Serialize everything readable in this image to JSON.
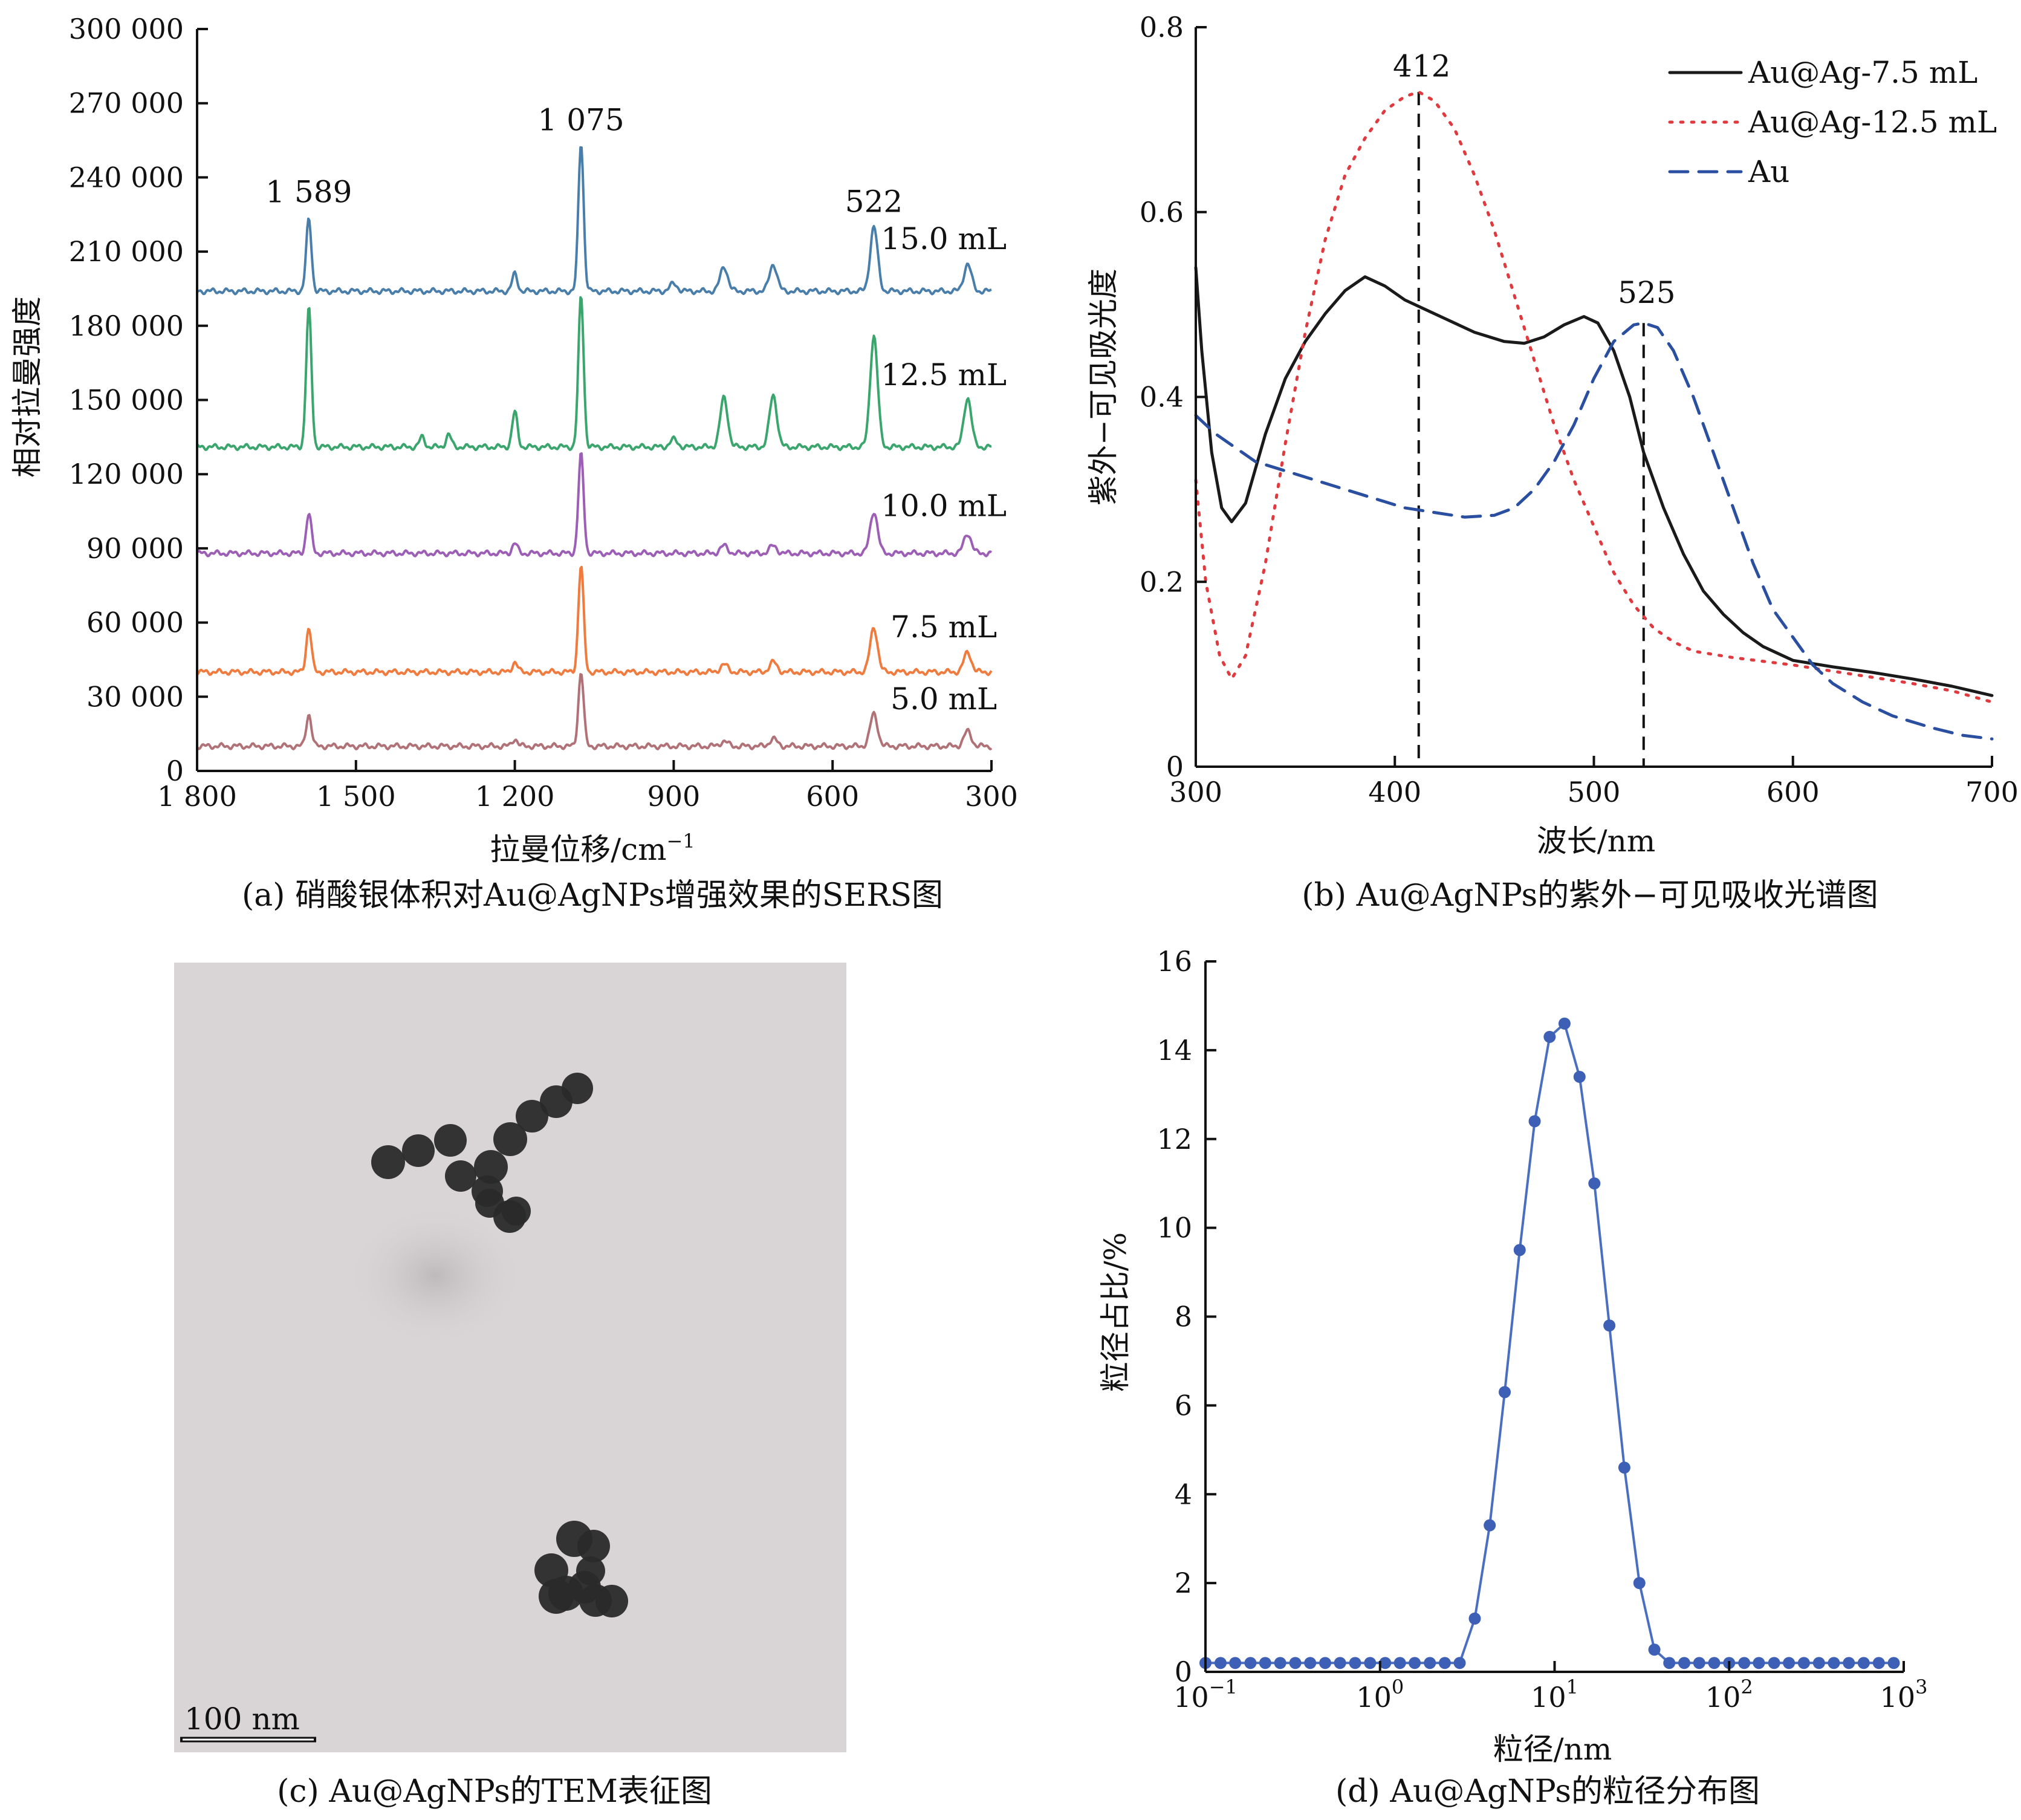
{
  "chart_data": [
    {
      "panel": "a",
      "type": "line",
      "caption": "(a) 硝酸银体积对Au@AgNPs增强效果的SERS图",
      "xlabel": "拉曼位移/cm",
      "xlabel_sup": "−1",
      "ylabel": "相对拉曼强度",
      "xlim": [
        1800,
        300
      ],
      "ylim": [
        0,
        300000
      ],
      "x_ticks": [
        {
          "value": 1800,
          "label": "1 800"
        },
        {
          "value": 1500,
          "label": "1 500"
        },
        {
          "value": 1200,
          "label": "1 200"
        },
        {
          "value": 900,
          "label": "900"
        },
        {
          "value": 600,
          "label": "600"
        },
        {
          "value": 300,
          "label": "300"
        }
      ],
      "y_ticks": [
        {
          "value": 0,
          "label": "0"
        },
        {
          "value": 30000,
          "label": "30 000"
        },
        {
          "value": 60000,
          "label": "60 000"
        },
        {
          "value": 90000,
          "label": "90 000"
        },
        {
          "value": 120000,
          "label": "120 000"
        },
        {
          "value": 150000,
          "label": "150 000"
        },
        {
          "value": 180000,
          "label": "180 000"
        },
        {
          "value": 210000,
          "label": "210 000"
        },
        {
          "value": 240000,
          "label": "240 000"
        },
        {
          "value": 270000,
          "label": "270 000"
        },
        {
          "value": 300000,
          "label": "300 000"
        }
      ],
      "annotations": [
        {
          "text": "1 589",
          "x": 1589,
          "y": 230000
        },
        {
          "text": "1 075",
          "x": 1075,
          "y": 259000
        },
        {
          "text": "522",
          "x": 522,
          "y": 226000
        }
      ],
      "series": [
        {
          "name": "15.0 mL",
          "color": "#4a7eaa",
          "baseline": 194000,
          "label_at": {
            "x": 390,
            "y": 211000
          },
          "peaks": [
            [
              1589,
              29000
            ],
            [
              1200,
              7000
            ],
            [
              1075,
              60000
            ],
            [
              900,
              3000
            ],
            [
              805,
              10000
            ],
            [
              712,
              11000
            ],
            [
              522,
              26000
            ],
            [
              345,
              11000
            ]
          ]
        },
        {
          "name": "12.5 mL",
          "color": "#3aa56c",
          "baseline": 131000,
          "label_at": {
            "x": 390,
            "y": 156000
          },
          "peaks": [
            [
              1589,
              56000
            ],
            [
              1375,
              4000
            ],
            [
              1325,
              5000
            ],
            [
              1200,
              14000
            ],
            [
              1075,
              61000
            ],
            [
              900,
              3000
            ],
            [
              805,
              20000
            ],
            [
              712,
              21000
            ],
            [
              522,
              45000
            ],
            [
              345,
              20000
            ]
          ]
        },
        {
          "name": "10.0 mL",
          "color": "#9c5fb5",
          "baseline": 88000,
          "label_at": {
            "x": 390,
            "y": 103000
          },
          "peaks": [
            [
              1589,
              16000
            ],
            [
              1200,
              4000
            ],
            [
              1075,
              40000
            ],
            [
              805,
              3000
            ],
            [
              712,
              3000
            ],
            [
              522,
              17000
            ],
            [
              345,
              8000
            ]
          ]
        },
        {
          "name": "7.5 mL",
          "color": "#f07b3f",
          "baseline": 40000,
          "label_at": {
            "x": 390,
            "y": 54000
          },
          "peaks": [
            [
              1589,
              18000
            ],
            [
              1200,
              4000
            ],
            [
              1075,
              43000
            ],
            [
              805,
              3000
            ],
            [
              712,
              4000
            ],
            [
              522,
              18000
            ],
            [
              345,
              8000
            ]
          ]
        },
        {
          "name": "5.0 mL",
          "color": "#b07276",
          "baseline": 10000,
          "label_at": {
            "x": 390,
            "y": 25000
          },
          "peaks": [
            [
              1589,
              13000
            ],
            [
              1200,
              3000
            ],
            [
              1075,
              30000
            ],
            [
              805,
              2000
            ],
            [
              712,
              3000
            ],
            [
              522,
              13000
            ],
            [
              345,
              6000
            ]
          ]
        }
      ]
    },
    {
      "panel": "b",
      "type": "line",
      "caption": "(b) Au@AgNPs的紫外−可见吸收光谱图",
      "xlabel": "波长/nm",
      "ylabel": "紫外−可见吸光度",
      "xlim": [
        300,
        700
      ],
      "ylim": [
        0,
        0.8
      ],
      "x_ticks": [
        {
          "value": 300,
          "label": "300"
        },
        {
          "value": 400,
          "label": "400"
        },
        {
          "value": 500,
          "label": "500"
        },
        {
          "value": 600,
          "label": "600"
        },
        {
          "value": 700,
          "label": "700"
        }
      ],
      "y_ticks": [
        {
          "value": 0,
          "label": "0"
        },
        {
          "value": 0.2,
          "label": "0.2"
        },
        {
          "value": 0.4,
          "label": "0.4"
        },
        {
          "value": 0.6,
          "label": "0.6"
        },
        {
          "value": 0.8,
          "label": "0.8"
        }
      ],
      "annotations": [
        {
          "text": "412",
          "x": 412,
          "y": 0.735
        },
        {
          "text": "525",
          "x": 525,
          "y": 0.49
        }
      ],
      "dashed_markers": [
        {
          "x": 412,
          "y_top": 0.73
        },
        {
          "x": 525,
          "y_top": 0.48
        }
      ],
      "legend_position": "top-right",
      "series": [
        {
          "name": "Au@Ag-7.5 mL",
          "color": "#1a1a1a",
          "style": "solid",
          "points": [
            [
              300,
              0.54
            ],
            [
              303,
              0.45
            ],
            [
              308,
              0.34
            ],
            [
              313,
              0.28
            ],
            [
              318,
              0.265
            ],
            [
              325,
              0.285
            ],
            [
              335,
              0.36
            ],
            [
              345,
              0.42
            ],
            [
              355,
              0.46
            ],
            [
              365,
              0.49
            ],
            [
              375,
              0.515
            ],
            [
              385,
              0.53
            ],
            [
              395,
              0.52
            ],
            [
              405,
              0.505
            ],
            [
              415,
              0.495
            ],
            [
              425,
              0.485
            ],
            [
              440,
              0.47
            ],
            [
              455,
              0.46
            ],
            [
              465,
              0.458
            ],
            [
              475,
              0.465
            ],
            [
              485,
              0.478
            ],
            [
              495,
              0.487
            ],
            [
              502,
              0.48
            ],
            [
              510,
              0.45
            ],
            [
              518,
              0.4
            ],
            [
              525,
              0.34
            ],
            [
              535,
              0.28
            ],
            [
              545,
              0.23
            ],
            [
              555,
              0.19
            ],
            [
              565,
              0.165
            ],
            [
              575,
              0.145
            ],
            [
              585,
              0.13
            ],
            [
              600,
              0.115
            ],
            [
              620,
              0.108
            ],
            [
              640,
              0.102
            ],
            [
              660,
              0.095
            ],
            [
              680,
              0.087
            ],
            [
              700,
              0.077
            ]
          ]
        },
        {
          "name": "Au@Ag-12.5 mL",
          "color": "#e0393e",
          "style": "dotted",
          "points": [
            [
              300,
              0.31
            ],
            [
              305,
              0.2
            ],
            [
              312,
              0.12
            ],
            [
              318,
              0.095
            ],
            [
              325,
              0.12
            ],
            [
              335,
              0.22
            ],
            [
              345,
              0.35
            ],
            [
              355,
              0.47
            ],
            [
              365,
              0.57
            ],
            [
              375,
              0.64
            ],
            [
              385,
              0.68
            ],
            [
              395,
              0.71
            ],
            [
              405,
              0.725
            ],
            [
              412,
              0.73
            ],
            [
              420,
              0.72
            ],
            [
              430,
              0.69
            ],
            [
              440,
              0.64
            ],
            [
              450,
              0.58
            ],
            [
              460,
              0.51
            ],
            [
              470,
              0.44
            ],
            [
              480,
              0.37
            ],
            [
              490,
              0.31
            ],
            [
              500,
              0.26
            ],
            [
              510,
              0.21
            ],
            [
              520,
              0.175
            ],
            [
              530,
              0.15
            ],
            [
              540,
              0.135
            ],
            [
              550,
              0.125
            ],
            [
              570,
              0.118
            ],
            [
              600,
              0.11
            ],
            [
              630,
              0.1
            ],
            [
              660,
              0.09
            ],
            [
              680,
              0.082
            ],
            [
              700,
              0.07
            ]
          ]
        },
        {
          "name": "Au",
          "color": "#2a4fa0",
          "style": "dashed",
          "points": [
            [
              300,
              0.38
            ],
            [
              310,
              0.36
            ],
            [
              320,
              0.345
            ],
            [
              330,
              0.33
            ],
            [
              345,
              0.32
            ],
            [
              360,
              0.31
            ],
            [
              375,
              0.3
            ],
            [
              390,
              0.29
            ],
            [
              405,
              0.28
            ],
            [
              420,
              0.275
            ],
            [
              435,
              0.27
            ],
            [
              450,
              0.272
            ],
            [
              460,
              0.28
            ],
            [
              470,
              0.3
            ],
            [
              480,
              0.33
            ],
            [
              490,
              0.37
            ],
            [
              500,
              0.42
            ],
            [
              510,
              0.46
            ],
            [
              520,
              0.478
            ],
            [
              525,
              0.48
            ],
            [
              532,
              0.475
            ],
            [
              540,
              0.45
            ],
            [
              550,
              0.4
            ],
            [
              560,
              0.34
            ],
            [
              570,
              0.28
            ],
            [
              580,
              0.22
            ],
            [
              590,
              0.17
            ],
            [
              600,
              0.14
            ],
            [
              610,
              0.11
            ],
            [
              620,
              0.09
            ],
            [
              635,
              0.07
            ],
            [
              650,
              0.055
            ],
            [
              670,
              0.042
            ],
            [
              685,
              0.034
            ],
            [
              700,
              0.03
            ]
          ]
        }
      ]
    },
    {
      "panel": "c",
      "type": "image",
      "caption": "(c) Au@AgNPs的TEM表征图",
      "scale_bar_label": "100 nm",
      "background_color": "#d9d5d6",
      "particle_color": "#2a2a2a"
    },
    {
      "panel": "d",
      "type": "line",
      "caption": "(d) Au@AgNPs的粒径分布图",
      "xlabel": "粒径/nm",
      "ylabel": "粒径占比/%",
      "x_scale": "log",
      "xlim": [
        0.1,
        1000
      ],
      "ylim": [
        0,
        16
      ],
      "x_ticks": [
        {
          "value": 0.1,
          "base": "10",
          "exp": "−1"
        },
        {
          "value": 1,
          "base": "10",
          "exp": "0"
        },
        {
          "value": 10,
          "base": "10",
          "exp": "1"
        },
        {
          "value": 100,
          "base": "10",
          "exp": "2"
        },
        {
          "value": 1000,
          "base": "10",
          "exp": "3"
        }
      ],
      "y_ticks": [
        {
          "value": 0,
          "label": "0"
        },
        {
          "value": 2,
          "label": "2"
        },
        {
          "value": 4,
          "label": "4"
        },
        {
          "value": 6,
          "label": "6"
        },
        {
          "value": 8,
          "label": "8"
        },
        {
          "value": 10,
          "label": "10"
        },
        {
          "value": 12,
          "label": "12"
        },
        {
          "value": 14,
          "label": "14"
        },
        {
          "value": 16,
          "label": "16"
        }
      ],
      "series": [
        {
          "color": "#4a6fc1",
          "marker_color": "#3d5fb5",
          "points": [
            [
              0.1,
              0.2
            ],
            [
              0.122,
              0.2
            ],
            [
              0.148,
              0.2
            ],
            [
              0.181,
              0.2
            ],
            [
              0.22,
              0.2
            ],
            [
              0.268,
              0.2
            ],
            [
              0.327,
              0.2
            ],
            [
              0.398,
              0.2
            ],
            [
              0.485,
              0.2
            ],
            [
              0.59,
              0.2
            ],
            [
              0.72,
              0.2
            ],
            [
              0.877,
              0.2
            ],
            [
              1.07,
              0.2
            ],
            [
              1.3,
              0.2
            ],
            [
              1.58,
              0.2
            ],
            [
              1.93,
              0.2
            ],
            [
              2.35,
              0.2
            ],
            [
              2.86,
              0.2
            ],
            [
              3.49,
              1.2
            ],
            [
              4.25,
              3.3
            ],
            [
              5.18,
              6.3
            ],
            [
              6.31,
              9.5
            ],
            [
              7.69,
              12.4
            ],
            [
              9.37,
              14.3
            ],
            [
              11.4,
              14.6
            ],
            [
              13.9,
              13.4
            ],
            [
              16.9,
              11.0
            ],
            [
              20.6,
              7.8
            ],
            [
              25.1,
              4.6
            ],
            [
              30.6,
              2.0
            ],
            [
              37.3,
              0.5
            ],
            [
              45.4,
              0.2
            ],
            [
              55.3,
              0.2
            ],
            [
              67.4,
              0.2
            ],
            [
              82.1,
              0.2
            ],
            [
              100,
              0.2
            ],
            [
              122,
              0.2
            ],
            [
              148,
              0.2
            ],
            [
              181,
              0.2
            ],
            [
              220,
              0.2
            ],
            [
              268,
              0.2
            ],
            [
              327,
              0.2
            ],
            [
              398,
              0.2
            ],
            [
              485,
              0.2
            ],
            [
              590,
              0.2
            ],
            [
              720,
              0.2
            ],
            [
              877,
              0.2
            ]
          ]
        }
      ]
    }
  ]
}
